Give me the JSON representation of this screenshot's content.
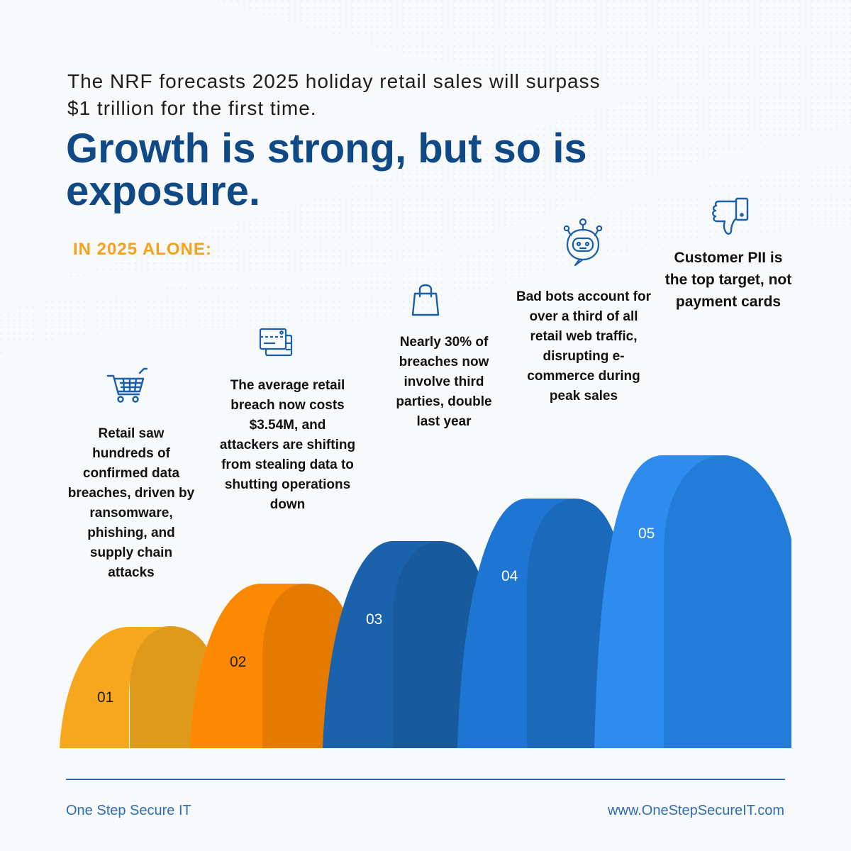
{
  "intro": "The NRF forecasts 2025 holiday retail sales will surpass $1 trillion for the first time.",
  "headline": "Growth is strong, but so is exposure.",
  "subhead": "IN 2025 ALONE:",
  "steps": [
    {
      "number": "01",
      "text": "Retail saw hundreds of confirmed data breaches, driven by ransomware, phishing, and supply chain attacks",
      "icon": "shopping-cart-icon",
      "color": "#f7a71e",
      "shade": "#e09a1b"
    },
    {
      "number": "02",
      "text": "The average retail breach now costs $3.54M, and attackers are shifting from stealing data to shutting operations down",
      "icon": "credit-cards-icon",
      "color": "#fd8801",
      "shade": "#e57a01"
    },
    {
      "number": "03",
      "text": "Nearly 30% of breaches now involve third parties, double last year",
      "icon": "shopping-bag-icon",
      "color": "#1b62ad",
      "shade": "#175a9e"
    },
    {
      "number": "04",
      "text": "Bad bots account for over a third of all retail web traffic, disrupting e-commerce during peak sales",
      "icon": "robot-icon",
      "color": "#1f76d2",
      "shade": "#1b69bb"
    },
    {
      "number": "05",
      "text": "Customer PII is the top target, not payment cards",
      "icon": "thumbs-down-icon",
      "color": "#2d8cee",
      "shade": "#237dd8"
    }
  ],
  "footer": {
    "brand": "One Step Secure IT",
    "url": "www.OneStepSecureIT.com"
  },
  "colors": {
    "headline": "#0f4a87",
    "accent": "#f5a21b",
    "footer": "#2f6db4"
  }
}
